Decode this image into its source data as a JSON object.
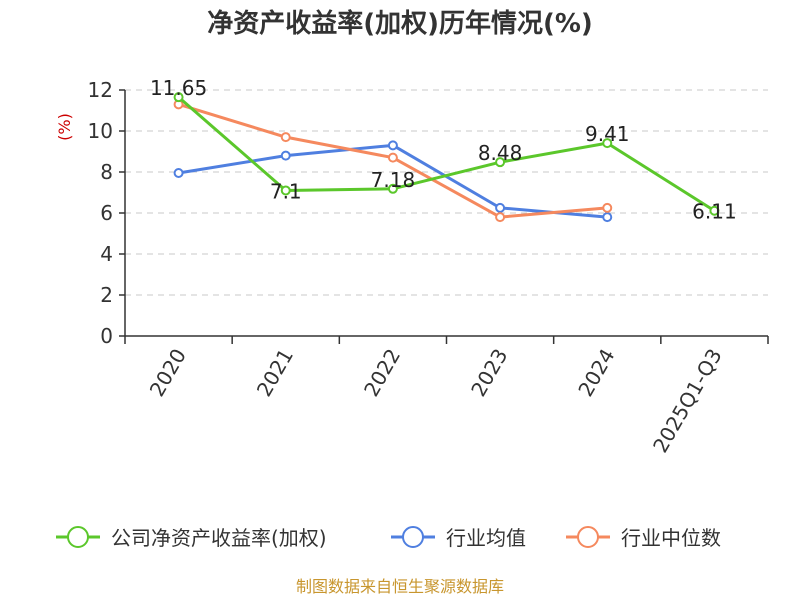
{
  "chart_data": {
    "type": "line",
    "title": "净资产收益率(加权)历年情况(%)",
    "ylabel": "(%)",
    "xlabel": "",
    "categories": [
      "2020",
      "2021",
      "2022",
      "2023",
      "2024",
      "2025Q1-Q3"
    ],
    "ylim": [
      0,
      12
    ],
    "yticks": [
      0,
      2,
      4,
      6,
      8,
      10,
      12
    ],
    "grid": true,
    "legend_position": "bottom",
    "series": [
      {
        "name": "公司净资产收益率(加权)",
        "color": "#5bc72b",
        "values": [
          11.65,
          7.1,
          7.18,
          8.48,
          9.41,
          6.11
        ],
        "labels": [
          "11.65",
          "7.1",
          "7.18",
          "8.48",
          "9.41",
          "6.11"
        ]
      },
      {
        "name": "行业均值",
        "color": "#4f7fe0",
        "values": [
          7.95,
          8.8,
          9.3,
          6.25,
          5.8,
          null
        ]
      },
      {
        "name": "行业中位数",
        "color": "#f5895e",
        "values": [
          11.3,
          9.7,
          8.7,
          5.8,
          6.25,
          null
        ]
      }
    ]
  },
  "source": "制图数据来自恒生聚源数据库"
}
